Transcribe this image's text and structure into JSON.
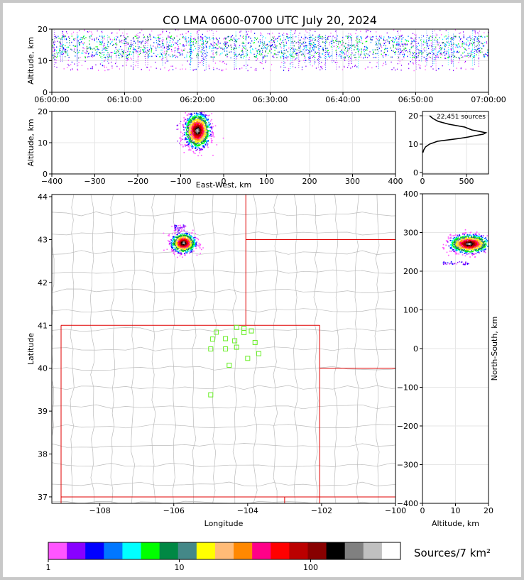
{
  "title": "CO LMA 0600-0700 UTC July 20, 2024",
  "colors": {
    "state_border": "#e00000",
    "county_border": "#bbbbbb",
    "station": "#66ee22",
    "grid": "#e6e6e6"
  },
  "chart_data": [
    {
      "id": "time-height",
      "type": "scatter",
      "xlabel": "",
      "ylabel": "Altitude, km",
      "xticks": [
        "06:00:00",
        "06:10:00",
        "06:20:00",
        "06:30:00",
        "06:40:00",
        "06:50:00",
        "07:00:00"
      ],
      "xlim_min": [
        0,
        60
      ],
      "ylim": [
        0,
        20
      ],
      "yticks": [
        0,
        10,
        20
      ],
      "source_band_km": [
        7,
        20
      ],
      "core_altitude_km": [
        11,
        18
      ]
    },
    {
      "id": "ew-height",
      "type": "heatmap",
      "xlabel": "East-West, km",
      "ylabel": "Altitude, km",
      "xlim": [
        -400,
        400
      ],
      "xticks": [
        -400,
        -300,
        -200,
        -100,
        0,
        100,
        200,
        300,
        400
      ],
      "ylim": [
        0,
        20
      ],
      "yticks": [
        0,
        10,
        20
      ],
      "main_cell": {
        "x_center_km": -62,
        "z_center_km": 14,
        "z_range_km": [
          6,
          20
        ]
      }
    },
    {
      "id": "altitude-histogram",
      "type": "line",
      "annotation": "22,451 sources",
      "xlim": [
        0,
        750
      ],
      "xticks": [
        0,
        500
      ],
      "ylim": [
        0,
        20
      ],
      "yticks": [
        0,
        10,
        20
      ],
      "profile": [
        {
          "alt": 7,
          "count": 5
        },
        {
          "alt": 8,
          "count": 15
        },
        {
          "alt": 9,
          "count": 35
        },
        {
          "alt": 10,
          "count": 80
        },
        {
          "alt": 11,
          "count": 170
        },
        {
          "alt": 12,
          "count": 420
        },
        {
          "alt": 12.5,
          "count": 520
        },
        {
          "alt": 13,
          "count": 600
        },
        {
          "alt": 13.5,
          "count": 690
        },
        {
          "alt": 14,
          "count": 720
        },
        {
          "alt": 14.5,
          "count": 640
        },
        {
          "alt": 15,
          "count": 560
        },
        {
          "alt": 16,
          "count": 480
        },
        {
          "alt": 17,
          "count": 300
        },
        {
          "alt": 18,
          "count": 180
        },
        {
          "alt": 19,
          "count": 120
        },
        {
          "alt": 20,
          "count": 80
        }
      ]
    },
    {
      "id": "plan-view",
      "type": "scatter",
      "xlabel": "Longitude",
      "ylabel": "Latitude",
      "xlim": [
        -109.3,
        -100.0
      ],
      "ylim": [
        36.85,
        44.05
      ],
      "xticks": [
        -108,
        -106,
        -104,
        -102,
        -100
      ],
      "yticks": [
        37,
        38,
        39,
        40,
        41,
        42,
        43,
        44
      ],
      "storm_center": {
        "lon": -105.75,
        "lat": 42.93
      },
      "stations": [
        {
          "lon": -104.3,
          "lat": 40.95
        },
        {
          "lon": -104.1,
          "lat": 40.93
        },
        {
          "lon": -103.9,
          "lat": 40.87
        },
        {
          "lon": -104.1,
          "lat": 40.83
        },
        {
          "lon": -104.85,
          "lat": 40.84
        },
        {
          "lon": -104.95,
          "lat": 40.68
        },
        {
          "lon": -104.6,
          "lat": 40.69
        },
        {
          "lon": -104.35,
          "lat": 40.64
        },
        {
          "lon": -103.8,
          "lat": 40.6
        },
        {
          "lon": -105.0,
          "lat": 40.45
        },
        {
          "lon": -104.6,
          "lat": 40.45
        },
        {
          "lon": -104.3,
          "lat": 40.49
        },
        {
          "lon": -103.7,
          "lat": 40.34
        },
        {
          "lon": -104.0,
          "lat": 40.23
        },
        {
          "lon": -104.5,
          "lat": 40.07
        },
        {
          "lon": -105.0,
          "lat": 39.38
        }
      ]
    },
    {
      "id": "ns-height",
      "type": "heatmap",
      "xlabel": "Altitude, km",
      "ylabel": "North-South, km",
      "xlim": [
        0,
        20
      ],
      "xticks": [
        0,
        10,
        20
      ],
      "ylim": [
        -400,
        400
      ],
      "yticks": [
        -400,
        -300,
        -200,
        -100,
        0,
        100,
        200,
        300,
        400
      ],
      "main_cell": {
        "y_center_km": 272,
        "z_center_km": 14,
        "z_range_km": [
          6,
          20
        ]
      }
    },
    {
      "id": "colorbar",
      "type": "heatmap",
      "label": "Sources/7 km²",
      "tick_labels": [
        "1",
        "10",
        "100"
      ],
      "colors": [
        "#ff55ff",
        "#8800ff",
        "#0000ff",
        "#0077ff",
        "#00ffff",
        "#00ff00",
        "#008844",
        "#448888",
        "#ffff00",
        "#ffbb77",
        "#ff8800",
        "#ff0088",
        "#ff0000",
        "#bb0000",
        "#880000",
        "#000000",
        "#808080",
        "#c0c0c0",
        "#ffffff"
      ]
    }
  ]
}
